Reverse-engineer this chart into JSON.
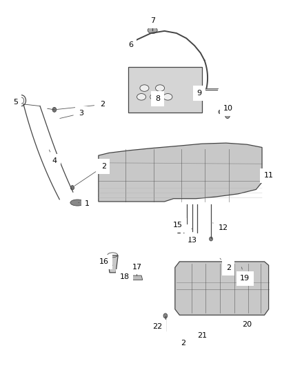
{
  "bg_color": "#ffffff",
  "fig_width": 4.38,
  "fig_height": 5.33,
  "dpi": 100,
  "line_color": "#444444",
  "label_color": "#000000",
  "label_fontsize": 8
}
